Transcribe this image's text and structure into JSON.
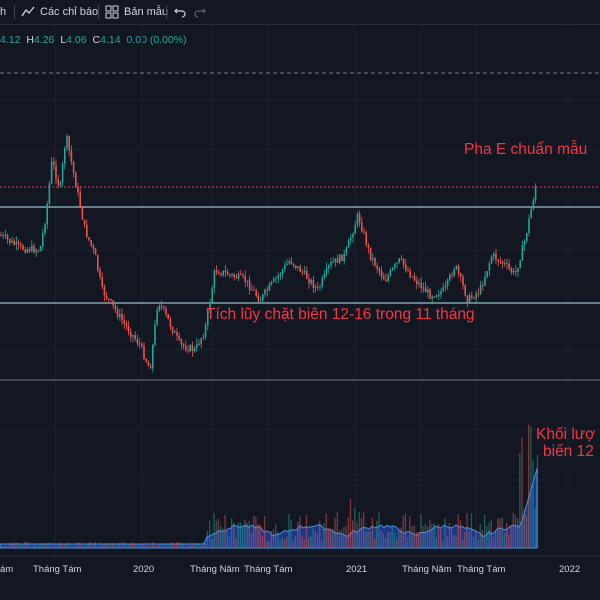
{
  "toolbar": {
    "item_h": "h",
    "indicators": "Các chỉ báo",
    "templates": "Bản mẫu"
  },
  "ohlc": {
    "o_value": "4.12",
    "h_label": "H",
    "h_value": "4.26",
    "l_label": "L",
    "l_value": "4.06",
    "c_label": "C",
    "c_value": "4.14",
    "change": "0.00 (0.00%)"
  },
  "annotations": {
    "phase_e": "Pha E chuẩn mẫu",
    "accumulation": "Tích lũy chặt biên 12-16 trong 11 tháng",
    "volume_line1": "Khối lượ",
    "volume_line2": "biến 12"
  },
  "x_axis": {
    "labels": [
      "ám",
      "Tháng Tám",
      "2020",
      "Tháng Năm",
      "Tháng Tám",
      "2021",
      "Tháng Năm",
      "Tháng Tám",
      "2022"
    ]
  },
  "colors": {
    "background": "#131722",
    "up": "#26a69a",
    "down": "#ef5350",
    "annotation": "#f23645",
    "level_line": "#b2ebf2",
    "volume_area": "#2962ff"
  },
  "icons": {
    "indicators": "indicators-icon",
    "templates": "templates-icon",
    "undo": "undo-icon",
    "redo": "redo-icon"
  }
}
